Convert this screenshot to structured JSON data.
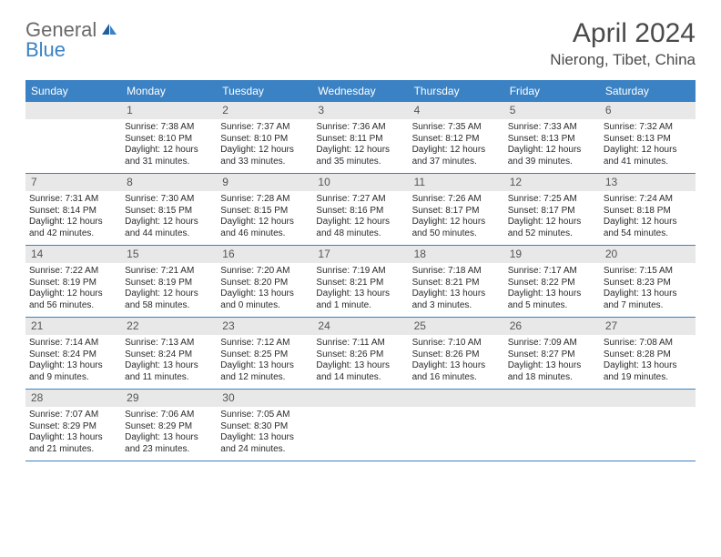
{
  "logo": {
    "text1": "General",
    "text2": "Blue"
  },
  "title": "April 2024",
  "location": "Nierong, Tibet, China",
  "colors": {
    "header_bg": "#3b82c4",
    "header_text": "#ffffff",
    "daynum_bg": "#e8e8e8",
    "daynum_text": "#555555",
    "body_text": "#2a2a2a",
    "border": "#3b82c4",
    "logo_gray": "#6a6a6a",
    "logo_blue": "#3b82c4"
  },
  "day_names": [
    "Sunday",
    "Monday",
    "Tuesday",
    "Wednesday",
    "Thursday",
    "Friday",
    "Saturday"
  ],
  "weeks": [
    [
      {
        "n": "",
        "sr": "",
        "ss": "",
        "dl": ""
      },
      {
        "n": "1",
        "sr": "Sunrise: 7:38 AM",
        "ss": "Sunset: 8:10 PM",
        "dl": "Daylight: 12 hours and 31 minutes."
      },
      {
        "n": "2",
        "sr": "Sunrise: 7:37 AM",
        "ss": "Sunset: 8:10 PM",
        "dl": "Daylight: 12 hours and 33 minutes."
      },
      {
        "n": "3",
        "sr": "Sunrise: 7:36 AM",
        "ss": "Sunset: 8:11 PM",
        "dl": "Daylight: 12 hours and 35 minutes."
      },
      {
        "n": "4",
        "sr": "Sunrise: 7:35 AM",
        "ss": "Sunset: 8:12 PM",
        "dl": "Daylight: 12 hours and 37 minutes."
      },
      {
        "n": "5",
        "sr": "Sunrise: 7:33 AM",
        "ss": "Sunset: 8:13 PM",
        "dl": "Daylight: 12 hours and 39 minutes."
      },
      {
        "n": "6",
        "sr": "Sunrise: 7:32 AM",
        "ss": "Sunset: 8:13 PM",
        "dl": "Daylight: 12 hours and 41 minutes."
      }
    ],
    [
      {
        "n": "7",
        "sr": "Sunrise: 7:31 AM",
        "ss": "Sunset: 8:14 PM",
        "dl": "Daylight: 12 hours and 42 minutes."
      },
      {
        "n": "8",
        "sr": "Sunrise: 7:30 AM",
        "ss": "Sunset: 8:15 PM",
        "dl": "Daylight: 12 hours and 44 minutes."
      },
      {
        "n": "9",
        "sr": "Sunrise: 7:28 AM",
        "ss": "Sunset: 8:15 PM",
        "dl": "Daylight: 12 hours and 46 minutes."
      },
      {
        "n": "10",
        "sr": "Sunrise: 7:27 AM",
        "ss": "Sunset: 8:16 PM",
        "dl": "Daylight: 12 hours and 48 minutes."
      },
      {
        "n": "11",
        "sr": "Sunrise: 7:26 AM",
        "ss": "Sunset: 8:17 PM",
        "dl": "Daylight: 12 hours and 50 minutes."
      },
      {
        "n": "12",
        "sr": "Sunrise: 7:25 AM",
        "ss": "Sunset: 8:17 PM",
        "dl": "Daylight: 12 hours and 52 minutes."
      },
      {
        "n": "13",
        "sr": "Sunrise: 7:24 AM",
        "ss": "Sunset: 8:18 PM",
        "dl": "Daylight: 12 hours and 54 minutes."
      }
    ],
    [
      {
        "n": "14",
        "sr": "Sunrise: 7:22 AM",
        "ss": "Sunset: 8:19 PM",
        "dl": "Daylight: 12 hours and 56 minutes."
      },
      {
        "n": "15",
        "sr": "Sunrise: 7:21 AM",
        "ss": "Sunset: 8:19 PM",
        "dl": "Daylight: 12 hours and 58 minutes."
      },
      {
        "n": "16",
        "sr": "Sunrise: 7:20 AM",
        "ss": "Sunset: 8:20 PM",
        "dl": "Daylight: 13 hours and 0 minutes."
      },
      {
        "n": "17",
        "sr": "Sunrise: 7:19 AM",
        "ss": "Sunset: 8:21 PM",
        "dl": "Daylight: 13 hours and 1 minute."
      },
      {
        "n": "18",
        "sr": "Sunrise: 7:18 AM",
        "ss": "Sunset: 8:21 PM",
        "dl": "Daylight: 13 hours and 3 minutes."
      },
      {
        "n": "19",
        "sr": "Sunrise: 7:17 AM",
        "ss": "Sunset: 8:22 PM",
        "dl": "Daylight: 13 hours and 5 minutes."
      },
      {
        "n": "20",
        "sr": "Sunrise: 7:15 AM",
        "ss": "Sunset: 8:23 PM",
        "dl": "Daylight: 13 hours and 7 minutes."
      }
    ],
    [
      {
        "n": "21",
        "sr": "Sunrise: 7:14 AM",
        "ss": "Sunset: 8:24 PM",
        "dl": "Daylight: 13 hours and 9 minutes."
      },
      {
        "n": "22",
        "sr": "Sunrise: 7:13 AM",
        "ss": "Sunset: 8:24 PM",
        "dl": "Daylight: 13 hours and 11 minutes."
      },
      {
        "n": "23",
        "sr": "Sunrise: 7:12 AM",
        "ss": "Sunset: 8:25 PM",
        "dl": "Daylight: 13 hours and 12 minutes."
      },
      {
        "n": "24",
        "sr": "Sunrise: 7:11 AM",
        "ss": "Sunset: 8:26 PM",
        "dl": "Daylight: 13 hours and 14 minutes."
      },
      {
        "n": "25",
        "sr": "Sunrise: 7:10 AM",
        "ss": "Sunset: 8:26 PM",
        "dl": "Daylight: 13 hours and 16 minutes."
      },
      {
        "n": "26",
        "sr": "Sunrise: 7:09 AM",
        "ss": "Sunset: 8:27 PM",
        "dl": "Daylight: 13 hours and 18 minutes."
      },
      {
        "n": "27",
        "sr": "Sunrise: 7:08 AM",
        "ss": "Sunset: 8:28 PM",
        "dl": "Daylight: 13 hours and 19 minutes."
      }
    ],
    [
      {
        "n": "28",
        "sr": "Sunrise: 7:07 AM",
        "ss": "Sunset: 8:29 PM",
        "dl": "Daylight: 13 hours and 21 minutes."
      },
      {
        "n": "29",
        "sr": "Sunrise: 7:06 AM",
        "ss": "Sunset: 8:29 PM",
        "dl": "Daylight: 13 hours and 23 minutes."
      },
      {
        "n": "30",
        "sr": "Sunrise: 7:05 AM",
        "ss": "Sunset: 8:30 PM",
        "dl": "Daylight: 13 hours and 24 minutes."
      },
      {
        "n": "",
        "sr": "",
        "ss": "",
        "dl": ""
      },
      {
        "n": "",
        "sr": "",
        "ss": "",
        "dl": ""
      },
      {
        "n": "",
        "sr": "",
        "ss": "",
        "dl": ""
      },
      {
        "n": "",
        "sr": "",
        "ss": "",
        "dl": ""
      }
    ]
  ]
}
